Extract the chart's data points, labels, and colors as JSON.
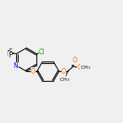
{
  "bg_color": "#f0f0f0",
  "bond_color": "#000000",
  "atom_colors": {
    "N": "#0000ff",
    "O": "#ff6600",
    "Cl": "#00aa00",
    "F": "#000000",
    "C": "#000000"
  },
  "figsize": [
    1.52,
    1.52
  ],
  "dpi": 100
}
